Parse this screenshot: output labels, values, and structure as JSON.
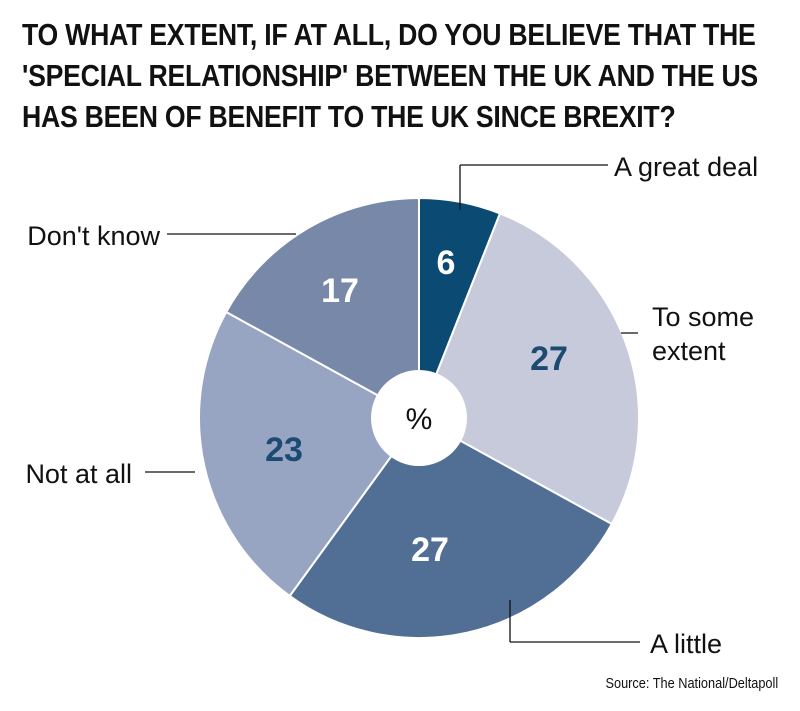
{
  "title_lines": [
    "TO WHAT EXTENT, IF AT ALL, DO YOU BELIEVE THAT THE",
    "'SPECIAL RELATIONSHIP' BETWEEN THE UK AND THE US",
    "HAS BEEN OF BENEFIT TO THE UK SINCE BREXIT?"
  ],
  "source": "Source: The National/Deltapoll",
  "chart_data": {
    "type": "pie",
    "title": "TO WHAT EXTENT, IF AT ALL, DO YOU BELIEVE THAT THE 'SPECIAL RELATIONSHIP' BETWEEN THE UK AND THE US HAS BEEN OF BENEFIT TO THE UK SINCE BREXIT?",
    "center_label": "%",
    "legend": "none (labels beside slices)",
    "slices": [
      {
        "label": "A great deal",
        "label_lines": [
          "A great deal"
        ],
        "value": 6,
        "color": "#0b4a73",
        "value_text_color": "#ffffff"
      },
      {
        "label": "To some extent",
        "label_lines": [
          "To some",
          "extent"
        ],
        "value": 27,
        "color": "#c6cadb",
        "value_text_color": "#1b4a72"
      },
      {
        "label": "A little",
        "label_lines": [
          "A little"
        ],
        "value": 27,
        "color": "#516f95",
        "value_text_color": "#ffffff"
      },
      {
        "label": "Not at all",
        "label_lines": [
          "Not at all"
        ],
        "value": 23,
        "color": "#97a5c3",
        "value_text_color": "#1b4a72"
      },
      {
        "label": "Don't know",
        "label_lines": [
          "Don't know"
        ],
        "value": 17,
        "color": "#7888a8",
        "value_text_color": "#ffffff"
      }
    ]
  }
}
